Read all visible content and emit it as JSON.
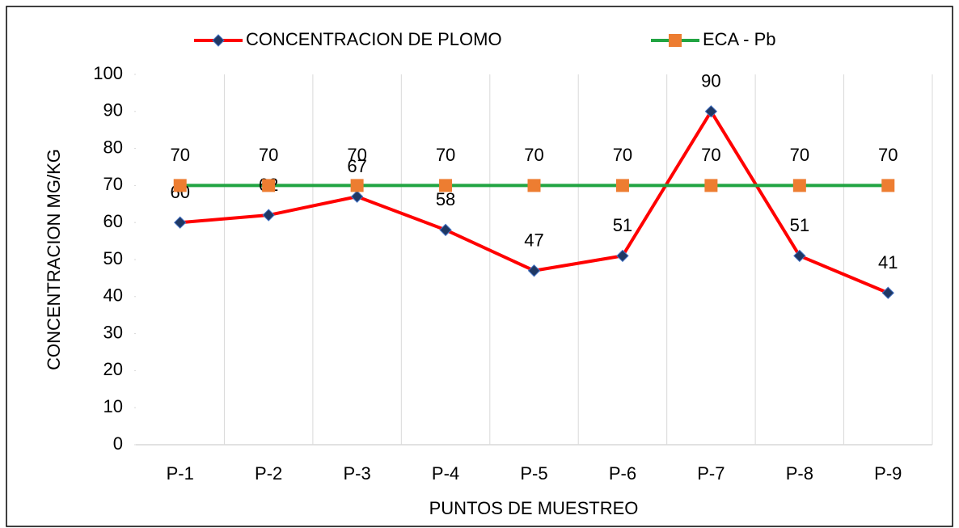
{
  "chart_data": {
    "type": "line",
    "xlabel": "PUNTOS DE MUESTREO",
    "ylabel": "CONCENTRACION MG/KG",
    "categories": [
      "P-1",
      "P-2",
      "P-3",
      "P-4",
      "P-5",
      "P-6",
      "P-7",
      "P-8",
      "P-9"
    ],
    "series": [
      {
        "name": "CONCENTRACION DE PLOMO",
        "color": "#ff0000",
        "marker": "diamond",
        "marker_color": "#1f3864",
        "values": [
          60,
          62,
          67,
          58,
          47,
          51,
          90,
          51,
          41
        ]
      },
      {
        "name": "ECA - Pb",
        "color": "#21a442",
        "marker": "square",
        "marker_color": "#ed7d31",
        "values": [
          70,
          70,
          70,
          70,
          70,
          70,
          70,
          70,
          70
        ]
      }
    ],
    "ylim": [
      0,
      100
    ],
    "yticks": [
      0,
      10,
      20,
      30,
      40,
      50,
      60,
      70,
      80,
      90,
      100
    ],
    "grid": "x",
    "legend": "top",
    "data_labels": true
  }
}
